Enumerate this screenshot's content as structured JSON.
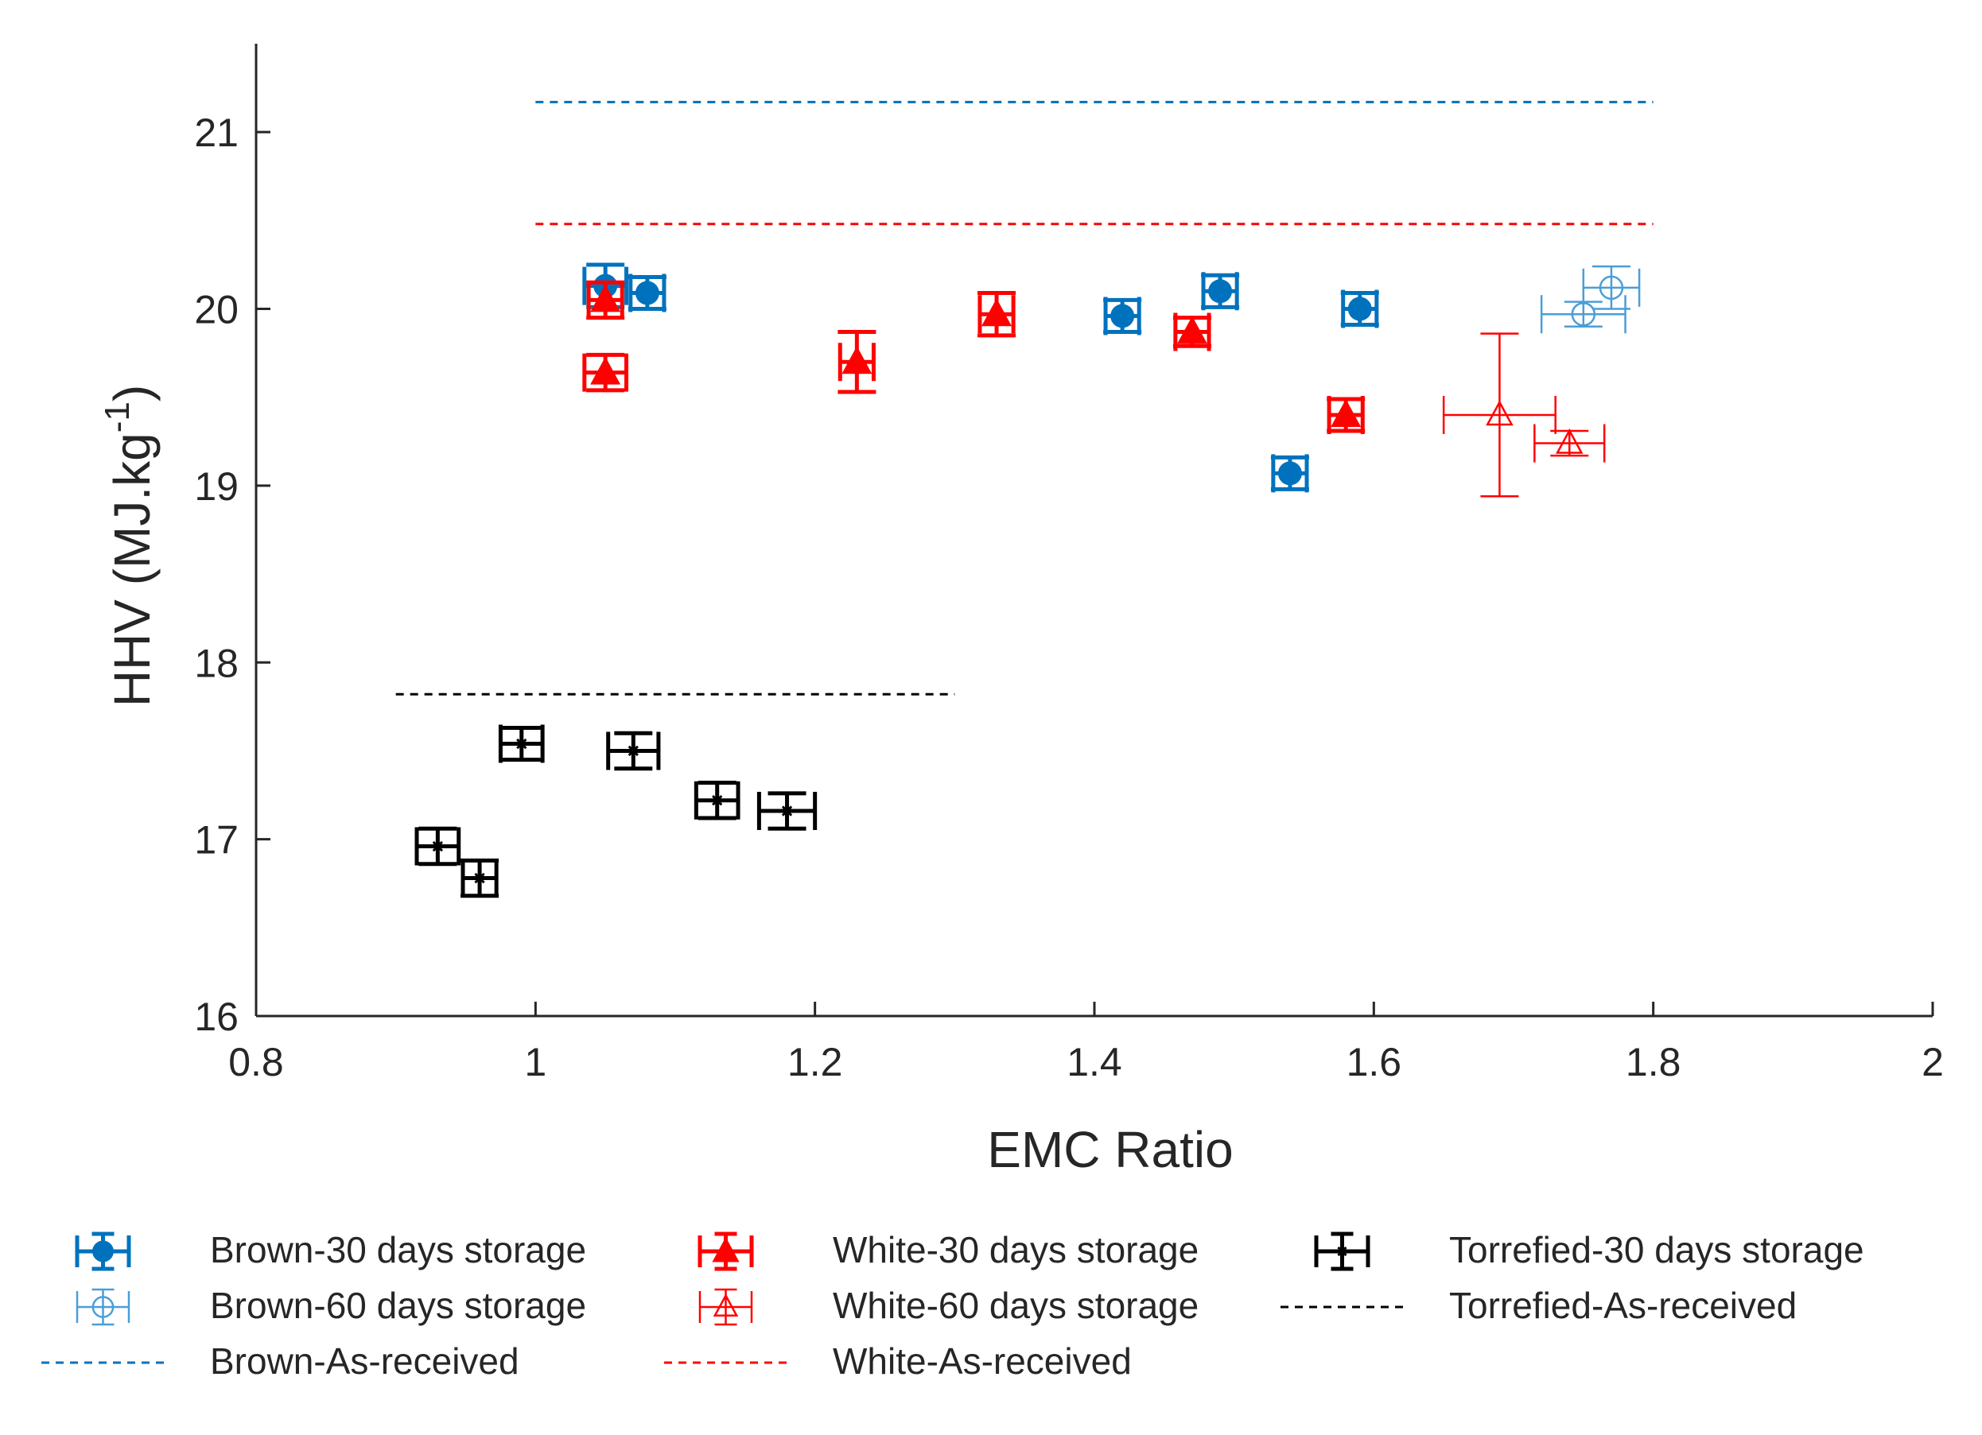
{
  "chart_data": {
    "type": "scatter",
    "title": "",
    "xlabel": "EMC Ratio",
    "ylabel": "HHV (MJ.kg",
    "ylabel_superscript": "-1",
    "ylabel_suffix": ")",
    "xlim": [
      0.8,
      2.0
    ],
    "ylim": [
      16,
      21.5
    ],
    "xticks": [
      0.8,
      1,
      1.2,
      1.4,
      1.6,
      1.8,
      2
    ],
    "xtick_labels": [
      "0.8",
      "1",
      "1.2",
      "1.4",
      "1.6",
      "1.8",
      "2"
    ],
    "yticks": [
      16,
      17,
      18,
      19,
      20,
      21
    ],
    "ytick_labels": [
      "16",
      "17",
      "18",
      "19",
      "20",
      "21"
    ],
    "grid": false,
    "legend_placement": "bottom",
    "series": [
      {
        "name": "Brown-30 days storage",
        "color": "#0072BD",
        "marker": "filled-circle",
        "points": [
          {
            "x": 1.05,
            "y": 20.13,
            "xerr": 0.015,
            "yerr": 0.12
          },
          {
            "x": 1.08,
            "y": 20.09,
            "xerr": 0.012,
            "yerr": 0.09
          },
          {
            "x": 1.42,
            "y": 19.96,
            "xerr": 0.012,
            "yerr": 0.09
          },
          {
            "x": 1.49,
            "y": 20.1,
            "xerr": 0.012,
            "yerr": 0.09
          },
          {
            "x": 1.54,
            "y": 19.07,
            "xerr": 0.012,
            "yerr": 0.09
          },
          {
            "x": 1.59,
            "y": 20.0,
            "xerr": 0.012,
            "yerr": 0.09
          }
        ]
      },
      {
        "name": "Brown-60 days storage",
        "color": "#4A9ED8",
        "marker": "open-circle",
        "points": [
          {
            "x": 1.75,
            "y": 19.97,
            "xerr": 0.03,
            "yerr": 0.07
          },
          {
            "x": 1.77,
            "y": 20.12,
            "xerr": 0.02,
            "yerr": 0.12
          }
        ]
      },
      {
        "name": "White-30 days storage",
        "color": "#FF0000",
        "marker": "filled-triangle",
        "points": [
          {
            "x": 1.05,
            "y": 20.05,
            "xerr": 0.012,
            "yerr": 0.1
          },
          {
            "x": 1.05,
            "y": 19.64,
            "xerr": 0.015,
            "yerr": 0.1
          },
          {
            "x": 1.23,
            "y": 19.7,
            "xerr": 0.012,
            "yerr": 0.17
          },
          {
            "x": 1.33,
            "y": 19.97,
            "xerr": 0.012,
            "yerr": 0.12
          },
          {
            "x": 1.47,
            "y": 19.87,
            "xerr": 0.012,
            "yerr": 0.08
          },
          {
            "x": 1.58,
            "y": 19.4,
            "xerr": 0.012,
            "yerr": 0.09
          }
        ]
      },
      {
        "name": "White-60 days storage",
        "color": "#FF0000",
        "marker": "open-triangle",
        "points": [
          {
            "x": 1.69,
            "y": 19.4,
            "xerr": 0.04,
            "yerr": 0.46
          },
          {
            "x": 1.74,
            "y": 19.24,
            "xerr": 0.025,
            "yerr": 0.07
          }
        ]
      },
      {
        "name": "Torrefied-30 days storage",
        "color": "#000000",
        "marker": "star",
        "points": [
          {
            "x": 0.93,
            "y": 16.96,
            "xerr": 0.015,
            "yerr": 0.1
          },
          {
            "x": 0.96,
            "y": 16.78,
            "xerr": 0.012,
            "yerr": 0.1
          },
          {
            "x": 0.99,
            "y": 17.54,
            "xerr": 0.015,
            "yerr": 0.09
          },
          {
            "x": 1.07,
            "y": 17.5,
            "xerr": 0.018,
            "yerr": 0.1
          },
          {
            "x": 1.13,
            "y": 17.22,
            "xerr": 0.015,
            "yerr": 0.1
          },
          {
            "x": 1.18,
            "y": 17.16,
            "xerr": 0.02,
            "yerr": 0.1
          }
        ]
      }
    ],
    "reference_lines": [
      {
        "name": "Torrefied-As-received",
        "color": "#000000",
        "y": 17.82,
        "x_start": 0.9,
        "x_end": 1.3
      },
      {
        "name": "Brown-As-received",
        "color": "#0072BD",
        "y": 21.17,
        "x_start": 1.0,
        "x_end": 1.8
      },
      {
        "name": "White-As-received",
        "color": "#FF0000",
        "y": 20.48,
        "x_start": 1.0,
        "x_end": 1.8
      }
    ],
    "legend": [
      {
        "label": "Brown-30 days storage",
        "kind": "errorbar",
        "marker": "filled-circle",
        "color": "#0072BD"
      },
      {
        "label": "White-30 days storage",
        "kind": "errorbar",
        "marker": "filled-triangle",
        "color": "#FF0000"
      },
      {
        "label": "Torrefied-30 days storage",
        "kind": "errorbar",
        "marker": "star",
        "color": "#000000"
      },
      {
        "label": "Brown-60 days storage",
        "kind": "errorbar",
        "marker": "open-circle",
        "color": "#4A9ED8"
      },
      {
        "label": "White-60 days storage",
        "kind": "errorbar",
        "marker": "open-triangle",
        "color": "#FF0000"
      },
      {
        "label": "Torrefied-As-received",
        "kind": "dashed",
        "color": "#000000"
      },
      {
        "label": "Brown-As-received",
        "kind": "dashed",
        "color": "#0072BD"
      },
      {
        "label": "White-As-received",
        "kind": "dashed",
        "color": "#FF0000"
      }
    ]
  }
}
